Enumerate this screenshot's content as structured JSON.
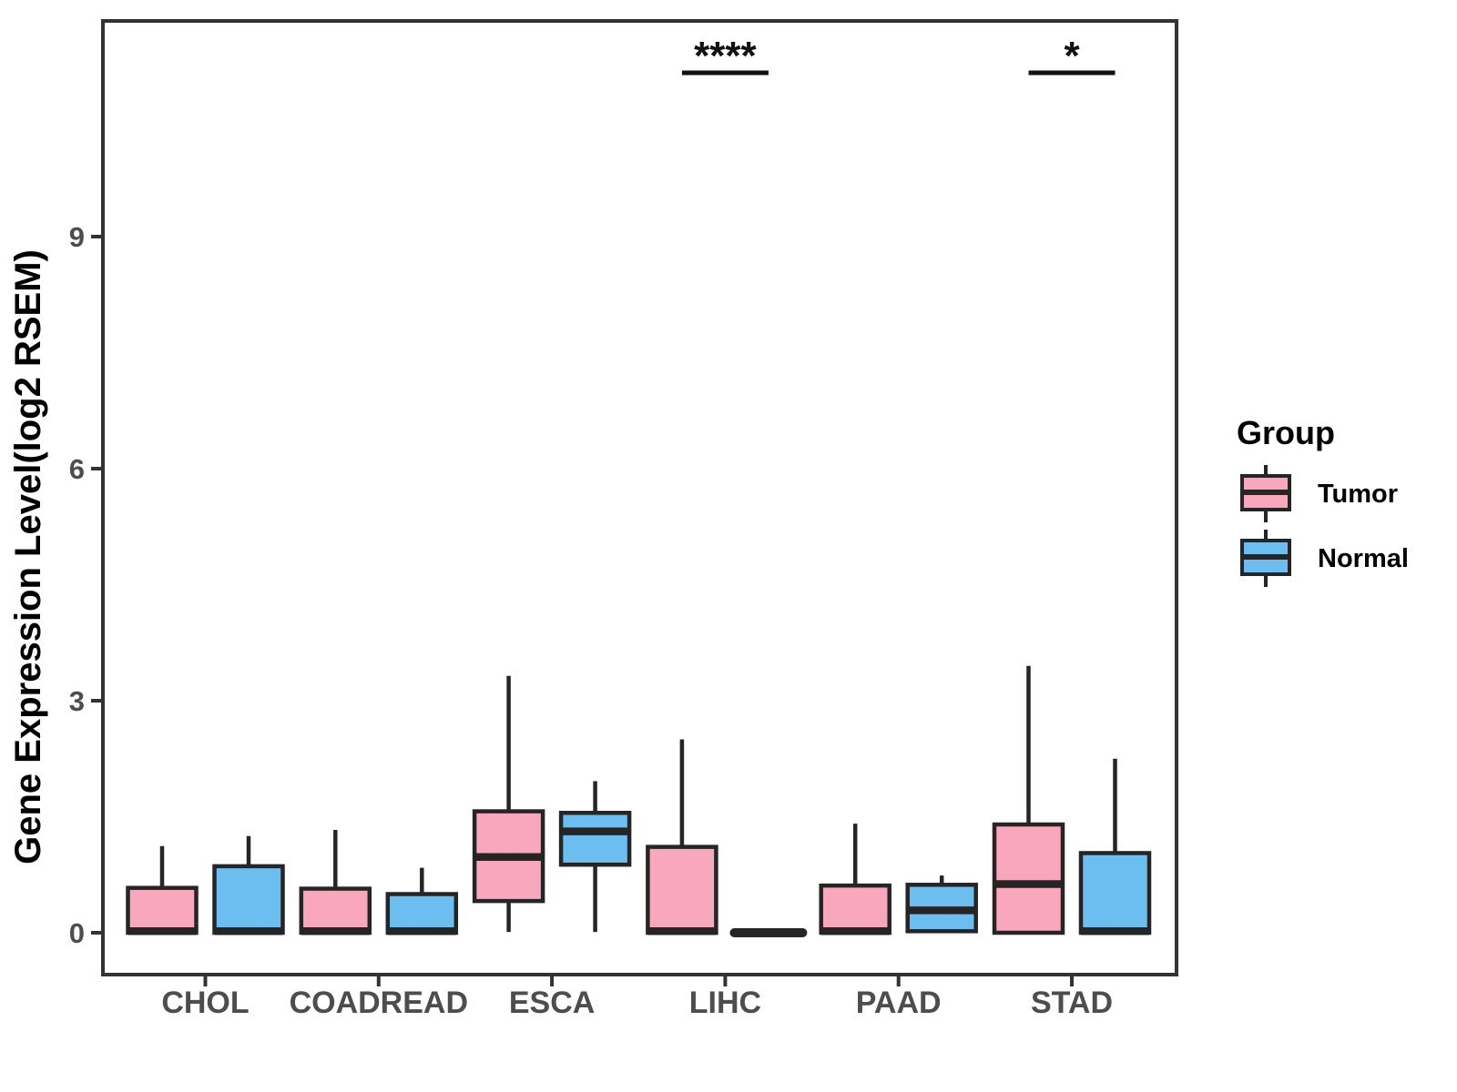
{
  "chart_data": {
    "type": "boxplot",
    "title": "",
    "xlabel": "",
    "ylabel": "Gene Expression Level(log2 RSEM)",
    "categories": [
      "CHOL",
      "COADREAD",
      "ESCA",
      "LIHC",
      "PAAD",
      "STAD"
    ],
    "yticks": [
      0,
      3,
      6,
      9
    ],
    "ylim": [
      -0.55,
      11.8
    ],
    "grid": false,
    "legend_position": "right",
    "series": [
      {
        "name": "Tumor",
        "color": "#F9A7BC",
        "boxes": [
          {
            "low": 0,
            "q1": 0,
            "median": 0.02,
            "q3": 0.58,
            "high": 1.12
          },
          {
            "low": 0,
            "q1": 0,
            "median": 0.02,
            "q3": 0.57,
            "high": 1.33
          },
          {
            "low": 0.01,
            "q1": 0.41,
            "median": 0.98,
            "q3": 1.57,
            "high": 3.32
          },
          {
            "low": 0,
            "q1": 0,
            "median": 0.02,
            "q3": 1.11,
            "high": 2.5
          },
          {
            "low": 0,
            "q1": 0,
            "median": 0.02,
            "q3": 0.61,
            "high": 1.41
          },
          {
            "low": 0,
            "q1": 0,
            "median": 0.63,
            "q3": 1.4,
            "high": 3.45
          }
        ]
      },
      {
        "name": "Normal",
        "color": "#6DBEF0",
        "boxes": [
          {
            "low": 0,
            "q1": 0,
            "median": 0.02,
            "q3": 0.86,
            "high": 1.25
          },
          {
            "low": 0,
            "q1": 0,
            "median": 0.02,
            "q3": 0.5,
            "high": 0.84
          },
          {
            "low": 0.01,
            "q1": 0.88,
            "median": 1.31,
            "q3": 1.55,
            "high": 1.96
          },
          {
            "low": 0,
            "q1": 0,
            "median": 0,
            "q3": 0,
            "high": 0
          },
          {
            "low": 0.02,
            "q1": 0.02,
            "median": 0.29,
            "q3": 0.62,
            "high": 0.74
          },
          {
            "low": 0,
            "q1": 0,
            "median": 0.02,
            "q3": 1.03,
            "high": 2.25
          }
        ]
      }
    ],
    "significance": [
      {
        "category": "LIHC",
        "label": "****"
      },
      {
        "category": "STAD",
        "label": "*"
      }
    ]
  },
  "legend": {
    "title": "Group"
  },
  "styles": {
    "box_border": "#252525",
    "whisker": "#252525",
    "median": "#252525",
    "panel_border": "#333333",
    "axis_text": "#4d4d4d",
    "significance": "#111111"
  }
}
